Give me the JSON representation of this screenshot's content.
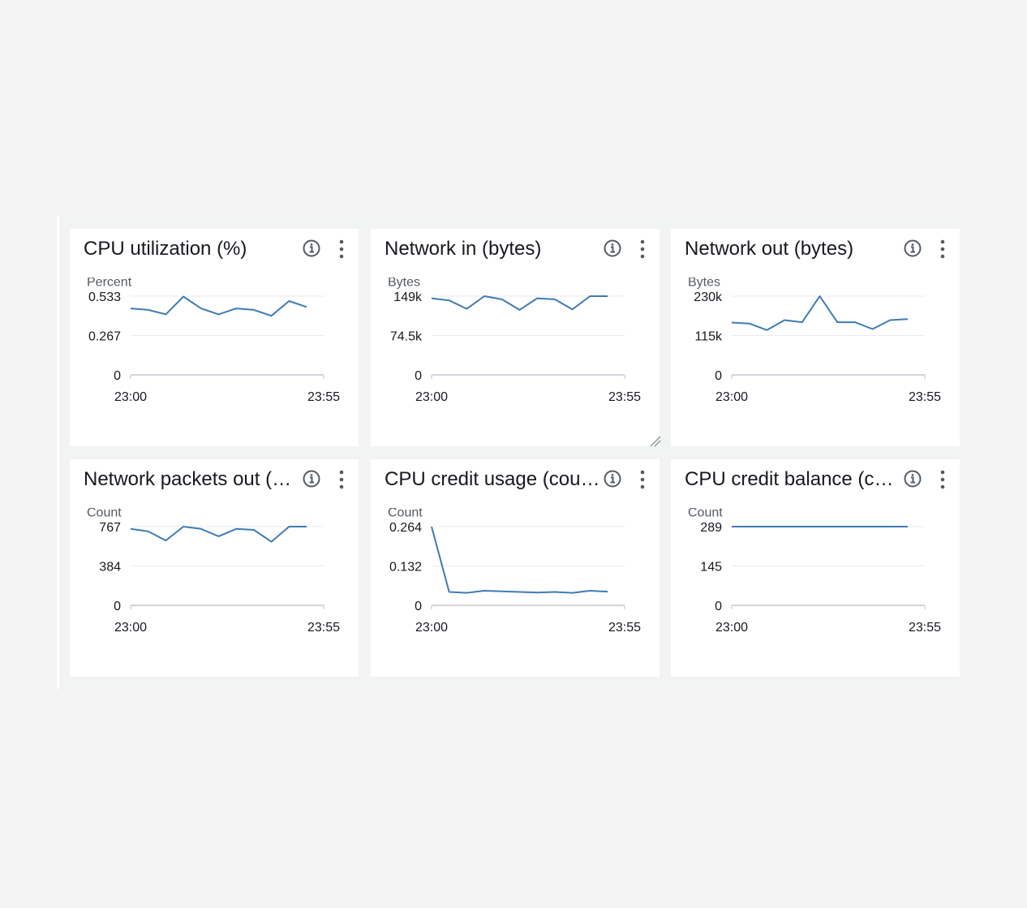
{
  "colors": {
    "line": "#3f7bb4",
    "grid": "#e9ebed",
    "axis": "#d1d5db"
  },
  "icons": {
    "info": "info-icon",
    "menu": "vertical-ellipsis-icon",
    "resize": "resize-handle-icon"
  },
  "widgets": [
    {
      "title": "CPU utilization (%)",
      "chart_data": {
        "type": "line",
        "title": "CPU utilization (%)",
        "ylabel": "Percent",
        "ylim": [
          0,
          0.533
        ],
        "yticks": [
          "0.533",
          "0.267",
          "0"
        ],
        "xticks": [
          "23:00",
          "23:55"
        ],
        "series": [
          {
            "values": [
              0.45,
              0.44,
              0.41,
              0.53,
              0.45,
              0.41,
              0.45,
              0.44,
              0.4,
              0.5,
              0.46
            ]
          }
        ]
      }
    },
    {
      "title": "Network in (bytes)",
      "chart_data": {
        "type": "line",
        "title": "Network in (bytes)",
        "ylabel": "Bytes",
        "ylim": [
          0,
          149000
        ],
        "yticks": [
          "149k",
          "74.5k",
          "0"
        ],
        "xticks": [
          "23:00",
          "23:55"
        ],
        "series": [
          {
            "values": [
              145000,
              141000,
              125000,
              149000,
              143000,
              123000,
              145000,
              143000,
              124000,
              149000,
              149000
            ]
          }
        ]
      }
    },
    {
      "title": "Network out (bytes)",
      "chart_data": {
        "type": "line",
        "title": "Network out (bytes)",
        "ylabel": "Bytes",
        "ylim": [
          0,
          230000
        ],
        "yticks": [
          "230k",
          "115k",
          "0"
        ],
        "xticks": [
          "23:00",
          "23:55"
        ],
        "series": [
          {
            "values": [
              153000,
              150000,
              131000,
              160000,
              154000,
              230000,
              154000,
              154000,
              134000,
              160000,
              163000
            ]
          }
        ]
      }
    },
    {
      "title": "Network packets out (count)",
      "chart_data": {
        "type": "line",
        "title": "Network packets out (count)",
        "ylabel": "Count",
        "ylim": [
          0,
          767
        ],
        "yticks": [
          "767",
          "384",
          "0"
        ],
        "xticks": [
          "23:00",
          "23:55"
        ],
        "series": [
          {
            "values": [
              745,
              720,
              632,
              767,
              745,
              673,
              745,
              735,
              620,
              767,
              767
            ]
          }
        ]
      }
    },
    {
      "title": "CPU credit usage (count)",
      "chart_data": {
        "type": "line",
        "title": "CPU credit usage (count)",
        "ylabel": "Count",
        "ylim": [
          0,
          0.264
        ],
        "yticks": [
          "0.264",
          "0.132",
          "0"
        ],
        "xticks": [
          "23:00",
          "23:55"
        ],
        "series": [
          {
            "values": [
              0.264,
              0.045,
              0.042,
              0.049,
              0.047,
              0.045,
              0.043,
              0.045,
              0.042,
              0.049,
              0.046
            ]
          }
        ]
      }
    },
    {
      "title": "CPU credit balance (count)",
      "chart_data": {
        "type": "line",
        "title": "CPU credit balance (count)",
        "ylabel": "Count",
        "ylim": [
          0,
          289
        ],
        "yticks": [
          "289",
          "145",
          "0"
        ],
        "xticks": [
          "23:00",
          "23:55"
        ],
        "series": [
          {
            "values": [
              289,
              289,
              289,
              289,
              289,
              289,
              289,
              289,
              289,
              289,
              289
            ]
          }
        ]
      }
    }
  ]
}
